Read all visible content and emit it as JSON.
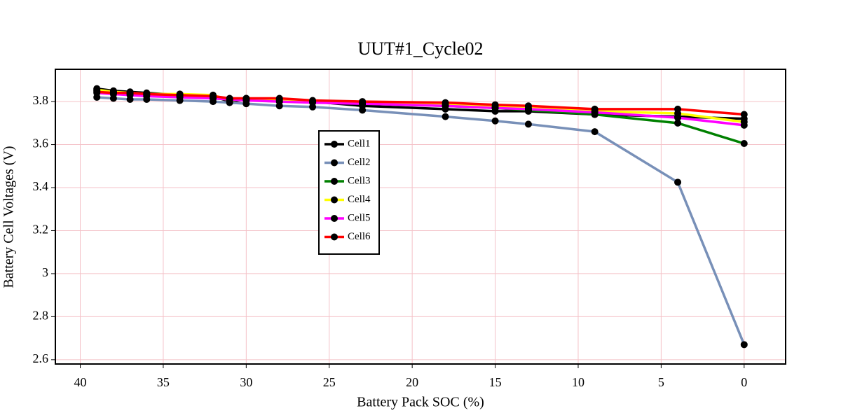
{
  "chart_data": {
    "type": "line",
    "title": "UUT#1_Cycle02",
    "x_label": "Battery Pack SOC (%)",
    "y_label": "Battery Cell Voltages (V)",
    "x": [
      39,
      38,
      37,
      36,
      34,
      32,
      31,
      30,
      28,
      26,
      23,
      18,
      15,
      13,
      9,
      4,
      0
    ],
    "series": [
      {
        "name": "Cell1",
        "color": "#000000",
        "values": [
          3.86,
          3.85,
          3.845,
          3.84,
          3.83,
          3.825,
          3.8,
          3.81,
          3.81,
          3.8,
          3.78,
          3.765,
          3.755,
          3.755,
          3.74,
          3.73,
          3.72
        ]
      },
      {
        "name": "Cell2",
        "color": "#7890b8",
        "values": [
          3.82,
          3.815,
          3.81,
          3.81,
          3.805,
          3.8,
          3.795,
          3.79,
          3.78,
          3.775,
          3.76,
          3.73,
          3.71,
          3.695,
          3.66,
          3.425,
          2.67
        ]
      },
      {
        "name": "Cell3",
        "color": "#008000",
        "values": [
          3.85,
          3.84,
          3.835,
          3.83,
          3.825,
          3.815,
          3.81,
          3.81,
          3.805,
          3.8,
          3.79,
          3.78,
          3.77,
          3.76,
          3.74,
          3.7,
          3.605
        ]
      },
      {
        "name": "Cell4",
        "color": "#ffff00",
        "values": [
          3.855,
          3.845,
          3.84,
          3.835,
          3.835,
          3.83,
          3.805,
          3.815,
          3.81,
          3.8,
          3.795,
          3.785,
          3.775,
          3.77,
          3.755,
          3.745,
          3.705
        ]
      },
      {
        "name": "Cell5",
        "color": "#ff00ff",
        "values": [
          3.84,
          3.835,
          3.83,
          3.825,
          3.82,
          3.815,
          3.81,
          3.805,
          3.8,
          3.795,
          3.79,
          3.78,
          3.77,
          3.765,
          3.75,
          3.725,
          3.69
        ]
      },
      {
        "name": "Cell6",
        "color": "#ff0000",
        "values": [
          3.845,
          3.84,
          3.84,
          3.835,
          3.83,
          3.825,
          3.815,
          3.815,
          3.815,
          3.805,
          3.8,
          3.795,
          3.785,
          3.78,
          3.765,
          3.765,
          3.74
        ]
      }
    ],
    "marker_color": "#000000",
    "xlim": [
      41.5,
      -2.5
    ],
    "xticks": [
      40,
      35,
      30,
      25,
      20,
      15,
      10,
      5,
      0
    ],
    "ylim": [
      2.58,
      3.95
    ],
    "yticks": [
      2.6,
      2.8,
      3,
      3.2,
      3.4,
      3.6,
      3.8
    ],
    "grid": true
  }
}
